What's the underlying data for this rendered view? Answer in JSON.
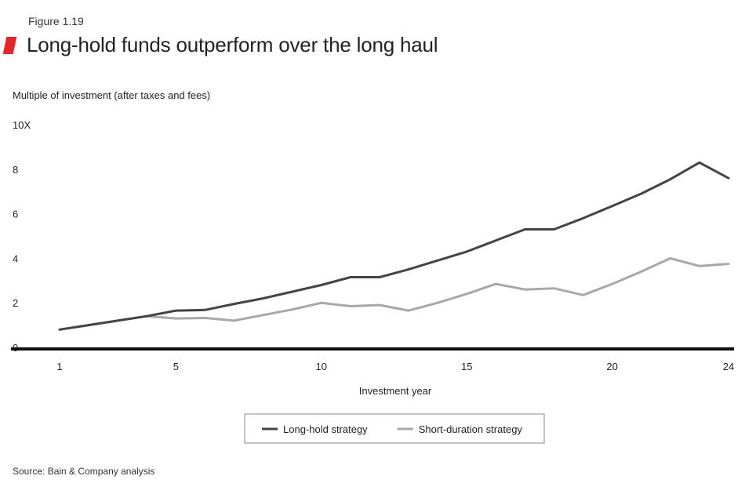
{
  "figure": {
    "label": "Figure 1.19",
    "title": "Long-hold funds outperform over the long haul",
    "source": "Source: Bain & Company analysis",
    "accent_color": "#e4262b"
  },
  "chart_data": {
    "type": "line",
    "ylabel": "Multiple of investment (after taxes and fees)",
    "xlabel": "Investment year",
    "ylim": [
      0,
      10
    ],
    "xlim": [
      1,
      24
    ],
    "y_ticks": [
      {
        "value": 10,
        "label": "10X"
      },
      {
        "value": 8,
        "label": "8"
      },
      {
        "value": 6,
        "label": "6"
      },
      {
        "value": 4,
        "label": "4"
      },
      {
        "value": 2,
        "label": "2"
      },
      {
        "value": 0,
        "label": "0"
      }
    ],
    "x_ticks": [
      {
        "value": 1,
        "label": "1"
      },
      {
        "value": 5,
        "label": "5"
      },
      {
        "value": 10,
        "label": "10"
      },
      {
        "value": 15,
        "label": "15"
      },
      {
        "value": 20,
        "label": "20"
      },
      {
        "value": 24,
        "label": "24"
      }
    ],
    "x": [
      1,
      2,
      3,
      4,
      5,
      6,
      7,
      8,
      9,
      10,
      11,
      12,
      13,
      14,
      15,
      16,
      17,
      18,
      19,
      20,
      21,
      22,
      23,
      24
    ],
    "series": [
      {
        "name": "Long-hold strategy",
        "color": "#444444",
        "values": [
          0.8,
          1.0,
          1.2,
          1.4,
          1.65,
          1.68,
          1.95,
          2.2,
          2.5,
          2.8,
          3.15,
          3.15,
          3.5,
          3.9,
          4.3,
          4.8,
          5.3,
          5.3,
          5.8,
          6.35,
          6.9,
          7.55,
          8.3,
          7.6
        ]
      },
      {
        "name": "Short-duration strategy",
        "color": "#a8a8a8",
        "values": [
          0.8,
          1.0,
          1.2,
          1.4,
          1.3,
          1.32,
          1.2,
          1.45,
          1.7,
          2.0,
          1.85,
          1.9,
          1.65,
          2.0,
          2.4,
          2.85,
          2.6,
          2.65,
          2.35,
          2.85,
          3.4,
          4.0,
          3.65,
          3.75
        ]
      }
    ],
    "grid": false,
    "legend_position": "bottom"
  }
}
